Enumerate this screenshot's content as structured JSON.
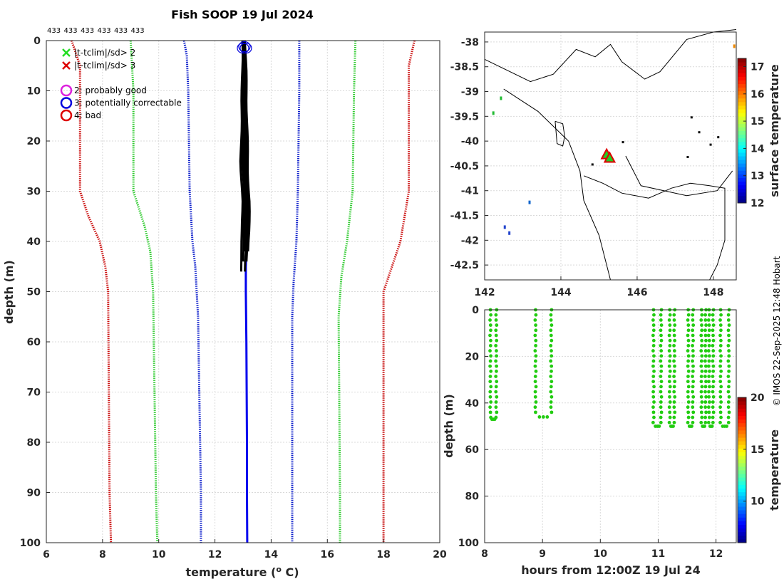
{
  "chart_data": [
    {
      "type": "line",
      "title": "Fish SOOP 19 Jul 2024",
      "xlabel": "temperature (°C)",
      "xlabel_prefix": "temperature (",
      "xlabel_sup": "o",
      "xlabel_suffix": " C)",
      "ylabel": "depth (m)",
      "xlim": [
        6,
        20
      ],
      "ylim": [
        100,
        0
      ],
      "xticks": [
        "6",
        "8",
        "10",
        "12",
        "14",
        "16",
        "18",
        "20"
      ],
      "yticks": [
        "0",
        "10",
        "20",
        "30",
        "40",
        "50",
        "60",
        "70",
        "80",
        "90",
        "100"
      ],
      "top_counts": [
        "433",
        "433",
        "433",
        "433",
        "433",
        "433"
      ],
      "legend": [
        {
          "marker": "x",
          "color": "#22dd22",
          "label": "|t-tclim|/sd> 2"
        },
        {
          "marker": "x",
          "color": "#dd0000",
          "label": "|t-tclim|/sd> 3"
        },
        {
          "marker": "o",
          "color": "#dd22dd",
          "label": "2: probably good"
        },
        {
          "marker": "o",
          "color": "#0000dd",
          "label": "3: potentially correctable"
        },
        {
          "marker": "o",
          "color": "#dd0000",
          "label": "4: bad"
        }
      ],
      "series": [
        {
          "name": "clim -3sd",
          "color": "#cc1111",
          "style": "dotted",
          "points": [
            [
              6.9,
              0
            ],
            [
              7.2,
              5
            ],
            [
              7.2,
              30
            ],
            [
              7.5,
              35
            ],
            [
              7.9,
              40
            ],
            [
              8.1,
              45
            ],
            [
              8.2,
              50
            ],
            [
              8.25,
              90
            ],
            [
              8.3,
              100
            ]
          ]
        },
        {
          "name": "clim -2sd",
          "color": "#33cc33",
          "style": "dotted",
          "points": [
            [
              9.0,
              0
            ],
            [
              9.1,
              10
            ],
            [
              9.1,
              30
            ],
            [
              9.5,
              37
            ],
            [
              9.7,
              42
            ],
            [
              9.8,
              50
            ],
            [
              9.9,
              90
            ],
            [
              9.95,
              100
            ]
          ]
        },
        {
          "name": "clim -1sd",
          "color": "#1122cc",
          "style": "dotted",
          "points": [
            [
              10.9,
              0
            ],
            [
              11.0,
              3
            ],
            [
              11.05,
              10
            ],
            [
              11.1,
              30
            ],
            [
              11.2,
              40
            ],
            [
              11.3,
              45
            ],
            [
              11.4,
              55
            ],
            [
              11.5,
              90
            ],
            [
              11.5,
              100
            ]
          ]
        },
        {
          "name": "clim +1sd",
          "color": "#1122cc",
          "style": "dotted",
          "points": [
            [
              15.0,
              0
            ],
            [
              15.0,
              10
            ],
            [
              14.95,
              30
            ],
            [
              14.9,
              40
            ],
            [
              14.8,
              48
            ],
            [
              14.75,
              55
            ],
            [
              14.75,
              90
            ],
            [
              14.75,
              100
            ]
          ]
        },
        {
          "name": "clim +2sd",
          "color": "#33cc33",
          "style": "dotted",
          "points": [
            [
              17.0,
              0
            ],
            [
              16.95,
              10
            ],
            [
              16.9,
              30
            ],
            [
              16.7,
              40
            ],
            [
              16.5,
              47
            ],
            [
              16.4,
              55
            ],
            [
              16.45,
              90
            ],
            [
              16.45,
              100
            ]
          ]
        },
        {
          "name": "clim +3sd",
          "color": "#cc1111",
          "style": "dotted",
          "points": [
            [
              19.1,
              0
            ],
            [
              18.9,
              5
            ],
            [
              18.9,
              30
            ],
            [
              18.6,
              40
            ],
            [
              18.3,
              45
            ],
            [
              18.0,
              50
            ],
            [
              18.0,
              90
            ],
            [
              18.0,
              100
            ]
          ]
        },
        {
          "name": "profile mean",
          "color": "#0000ee",
          "style": "solid",
          "points": [
            [
              13.05,
              0
            ],
            [
              13.08,
              10
            ],
            [
              13.1,
              25
            ],
            [
              13.15,
              32
            ],
            [
              13.15,
              38
            ],
            [
              13.1,
              45
            ],
            [
              13.1,
              50
            ],
            [
              13.12,
              60
            ],
            [
              13.14,
              80
            ],
            [
              13.14,
              90
            ],
            [
              13.15,
              100
            ]
          ]
        }
      ],
      "profiles": [
        {
          "color": "#000000",
          "max_depth": 46,
          "offsets": [
            -0.18,
            -0.12,
            -0.07,
            -0.02,
            0.03,
            0.07
          ]
        }
      ],
      "circle_markers": [
        [
          13.0,
          1.5
        ],
        [
          13.1,
          1.5
        ],
        [
          13.05,
          1.2
        ]
      ]
    },
    {
      "type": "scatter",
      "map_xlim": [
        142,
        148.6
      ],
      "map_ylim": [
        -42.8,
        -37.8
      ],
      "xticks": [
        "142",
        "144",
        "146",
        "148"
      ],
      "yticks": [
        "-38",
        "-38.5",
        "-39",
        "-39.5",
        "-40",
        "-40.5",
        "-41",
        "-41.5",
        "-42",
        "-42.5"
      ],
      "colorbar": {
        "label": "surface temperature",
        "min": 12,
        "max": 17.3,
        "ticks": [
          "12",
          "13",
          "14",
          "15",
          "16",
          "17"
        ]
      },
      "station_markers": [
        [
          145.2,
          -40.28
        ],
        [
          145.28,
          -40.35
        ]
      ]
    },
    {
      "type": "scatter",
      "xlabel": "hours from 12:00Z 19 Jul 24",
      "ylabel": "depth (m)",
      "xlim": [
        8,
        12.35
      ],
      "ylim": [
        100,
        0
      ],
      "xticks": [
        "8",
        "9",
        "10",
        "11",
        "12"
      ],
      "yticks": [
        "0",
        "20",
        "40",
        "60",
        "80",
        "100"
      ],
      "colorbar": {
        "label": "temperature",
        "min": 6,
        "max": 20,
        "ticks": [
          "10",
          "15",
          "20"
        ]
      },
      "casts": [
        {
          "t_down": 8.1,
          "t_up": 8.2,
          "max_depth": 47
        },
        {
          "t_down": 8.88,
          "t_up": 9.15,
          "max_depth": 46
        },
        {
          "t_down": 10.92,
          "t_up": 11.05,
          "max_depth": 50
        },
        {
          "t_down": 11.2,
          "t_up": 11.28,
          "max_depth": 50
        },
        {
          "t_down": 11.52,
          "t_up": 11.6,
          "max_depth": 50
        },
        {
          "t_down": 11.75,
          "t_up": 11.82,
          "max_depth": 50
        },
        {
          "t_down": 11.88,
          "t_up": 11.95,
          "max_depth": 50
        },
        {
          "t_down": 12.08,
          "t_up": 12.22,
          "max_depth": 50
        }
      ]
    }
  ],
  "credit": "© IMOS 22-Sep-2025 12:48 Hobart"
}
